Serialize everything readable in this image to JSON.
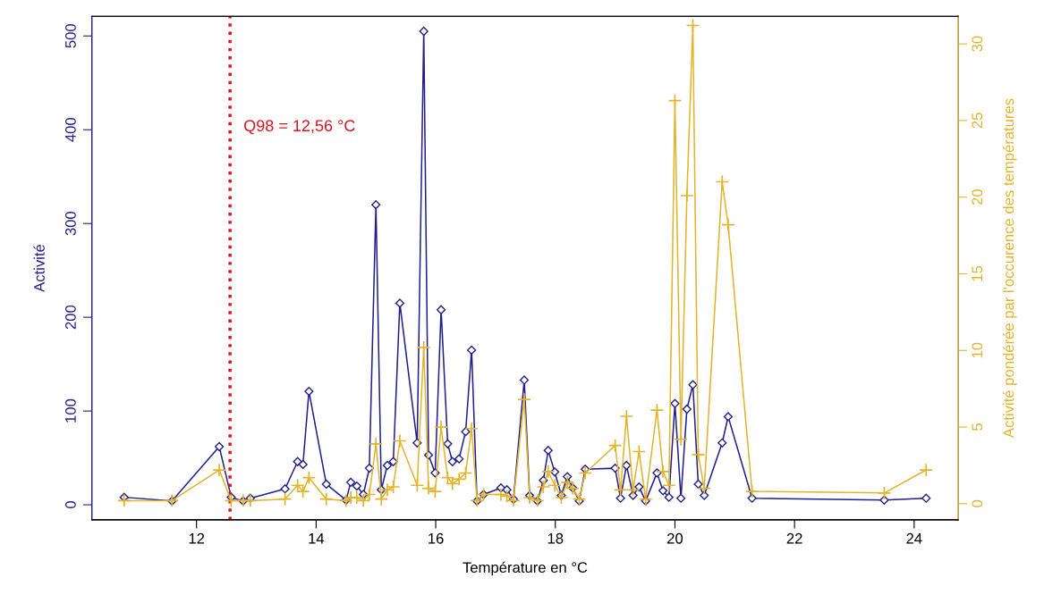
{
  "chart_data": {
    "type": "line",
    "xlabel": "Température en °C",
    "ylabel": "Activité",
    "y2label": "Activité pondérée par l'occurence des températures",
    "x": [
      10.79,
      11.59,
      12.38,
      12.58,
      12.78,
      12.9,
      13.48,
      13.69,
      13.78,
      13.88,
      14.17,
      14.5,
      14.58,
      14.68,
      14.79,
      14.89,
      15.0,
      15.09,
      15.19,
      15.29,
      15.4,
      15.69,
      15.8,
      15.88,
      15.99,
      16.09,
      16.2,
      16.28,
      16.39,
      16.5,
      16.6,
      16.69,
      16.8,
      17.09,
      17.19,
      17.3,
      17.48,
      17.57,
      17.7,
      17.8,
      17.88,
      17.99,
      18.1,
      18.2,
      18.29,
      18.4,
      18.5,
      19.0,
      19.09,
      19.19,
      19.3,
      19.4,
      19.51,
      19.7,
      19.8,
      19.9,
      20.0,
      20.1,
      20.2,
      20.3,
      20.39,
      20.49,
      20.79,
      20.89,
      21.29,
      23.5,
      24.2
    ],
    "series": [
      {
        "axis": "y",
        "color": "#1f1f8f",
        "marker": "diamond",
        "line_style": "solid",
        "values": [
          8,
          4,
          62,
          8,
          4,
          7,
          17,
          46,
          43,
          121,
          22,
          5,
          24,
          20,
          11,
          39,
          320,
          16,
          42,
          46,
          215,
          66,
          505,
          53,
          34,
          208,
          65,
          46,
          49,
          78,
          165,
          4,
          11,
          18,
          16,
          6,
          133,
          10,
          4,
          26,
          58,
          35,
          10,
          30,
          18,
          4,
          38,
          39,
          7,
          42,
          10,
          19,
          4,
          34,
          15,
          8,
          108,
          7,
          102,
          128,
          22,
          10,
          66,
          94,
          7,
          5,
          7
        ]
      },
      {
        "axis": "y2",
        "color": "#e3b32b",
        "marker": "cross",
        "line_style": "solid",
        "values": [
          0.2,
          0.2,
          2.2,
          0.2,
          0.2,
          0.2,
          0.3,
          1.2,
          0.8,
          1.7,
          0.3,
          0.2,
          0.4,
          0.4,
          0.2,
          0.6,
          3.9,
          0.3,
          0.9,
          1.1,
          4.1,
          1.2,
          10.2,
          1.0,
          0.8,
          5.0,
          1.7,
          1.3,
          1.6,
          2.0,
          4.9,
          0.2,
          0.6,
          0.6,
          0.5,
          0.2,
          6.8,
          0.4,
          0.2,
          1.1,
          2.1,
          1.2,
          0.4,
          1.4,
          1.0,
          0.3,
          2.0,
          3.8,
          0.9,
          5.7,
          0.9,
          3.4,
          0.3,
          6.1,
          2.1,
          1.2,
          26.3,
          4.2,
          20.1,
          31.2,
          3.2,
          1.0,
          21.0,
          18.2,
          0.8,
          0.7,
          2.2
        ]
      }
    ],
    "xlim": [
      10.25,
      24.74
    ],
    "xticks": [
      12,
      14,
      16,
      18,
      20,
      22,
      24
    ],
    "ylim": [
      -16,
      521
    ],
    "yticks": [
      0,
      100,
      200,
      300,
      400,
      500
    ],
    "y2lim": [
      -1.05,
      31.8
    ],
    "y2ticks": [
      0,
      5,
      10,
      15,
      20,
      25,
      30
    ],
    "ref_lines": [
      {
        "axis": "x",
        "value": 12.56,
        "label": "Q98 = 12,56 °C",
        "color": "#e0101e",
        "line_style": "dotted"
      }
    ],
    "grid": false,
    "legend": false
  }
}
